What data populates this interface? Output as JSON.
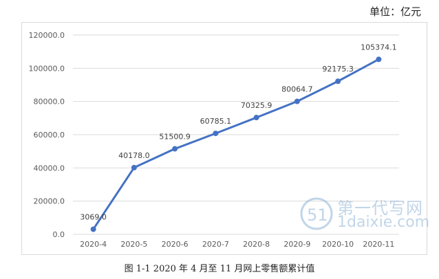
{
  "unit_text": "单位：亿元",
  "caption": "图 1-1  2020 年 4 月至 11 月网上零售额累计值",
  "watermark": {
    "cn": "第一代写网",
    "en": "1daixie.com",
    "logo": "51"
  },
  "colors": {
    "line": "#4472c4",
    "grid": "#d9d9d9",
    "axis_text": "#595959"
  },
  "chart_data": {
    "type": "line",
    "title": "",
    "xlabel": "",
    "ylabel": "",
    "categories": [
      "2020-4",
      "2020-5",
      "2020-6",
      "2020-7",
      "2020-8",
      "2020-9",
      "2020-10",
      "2020-11"
    ],
    "values": [
      3069.0,
      40178.0,
      51500.9,
      60785.1,
      70325.9,
      80064.7,
      92175.3,
      105374.1
    ],
    "value_labels": [
      "3069.0",
      "40178.0",
      "51500.9",
      "60785.1",
      "70325.9",
      "80064.7",
      "92175.3",
      "105374.1"
    ],
    "ylim": [
      0,
      120000
    ],
    "yticks": [
      "0.0",
      "20000.0",
      "40000.0",
      "60000.0",
      "80000.0",
      "100000.0",
      "120000.0"
    ],
    "grid": true,
    "legend": "none"
  }
}
